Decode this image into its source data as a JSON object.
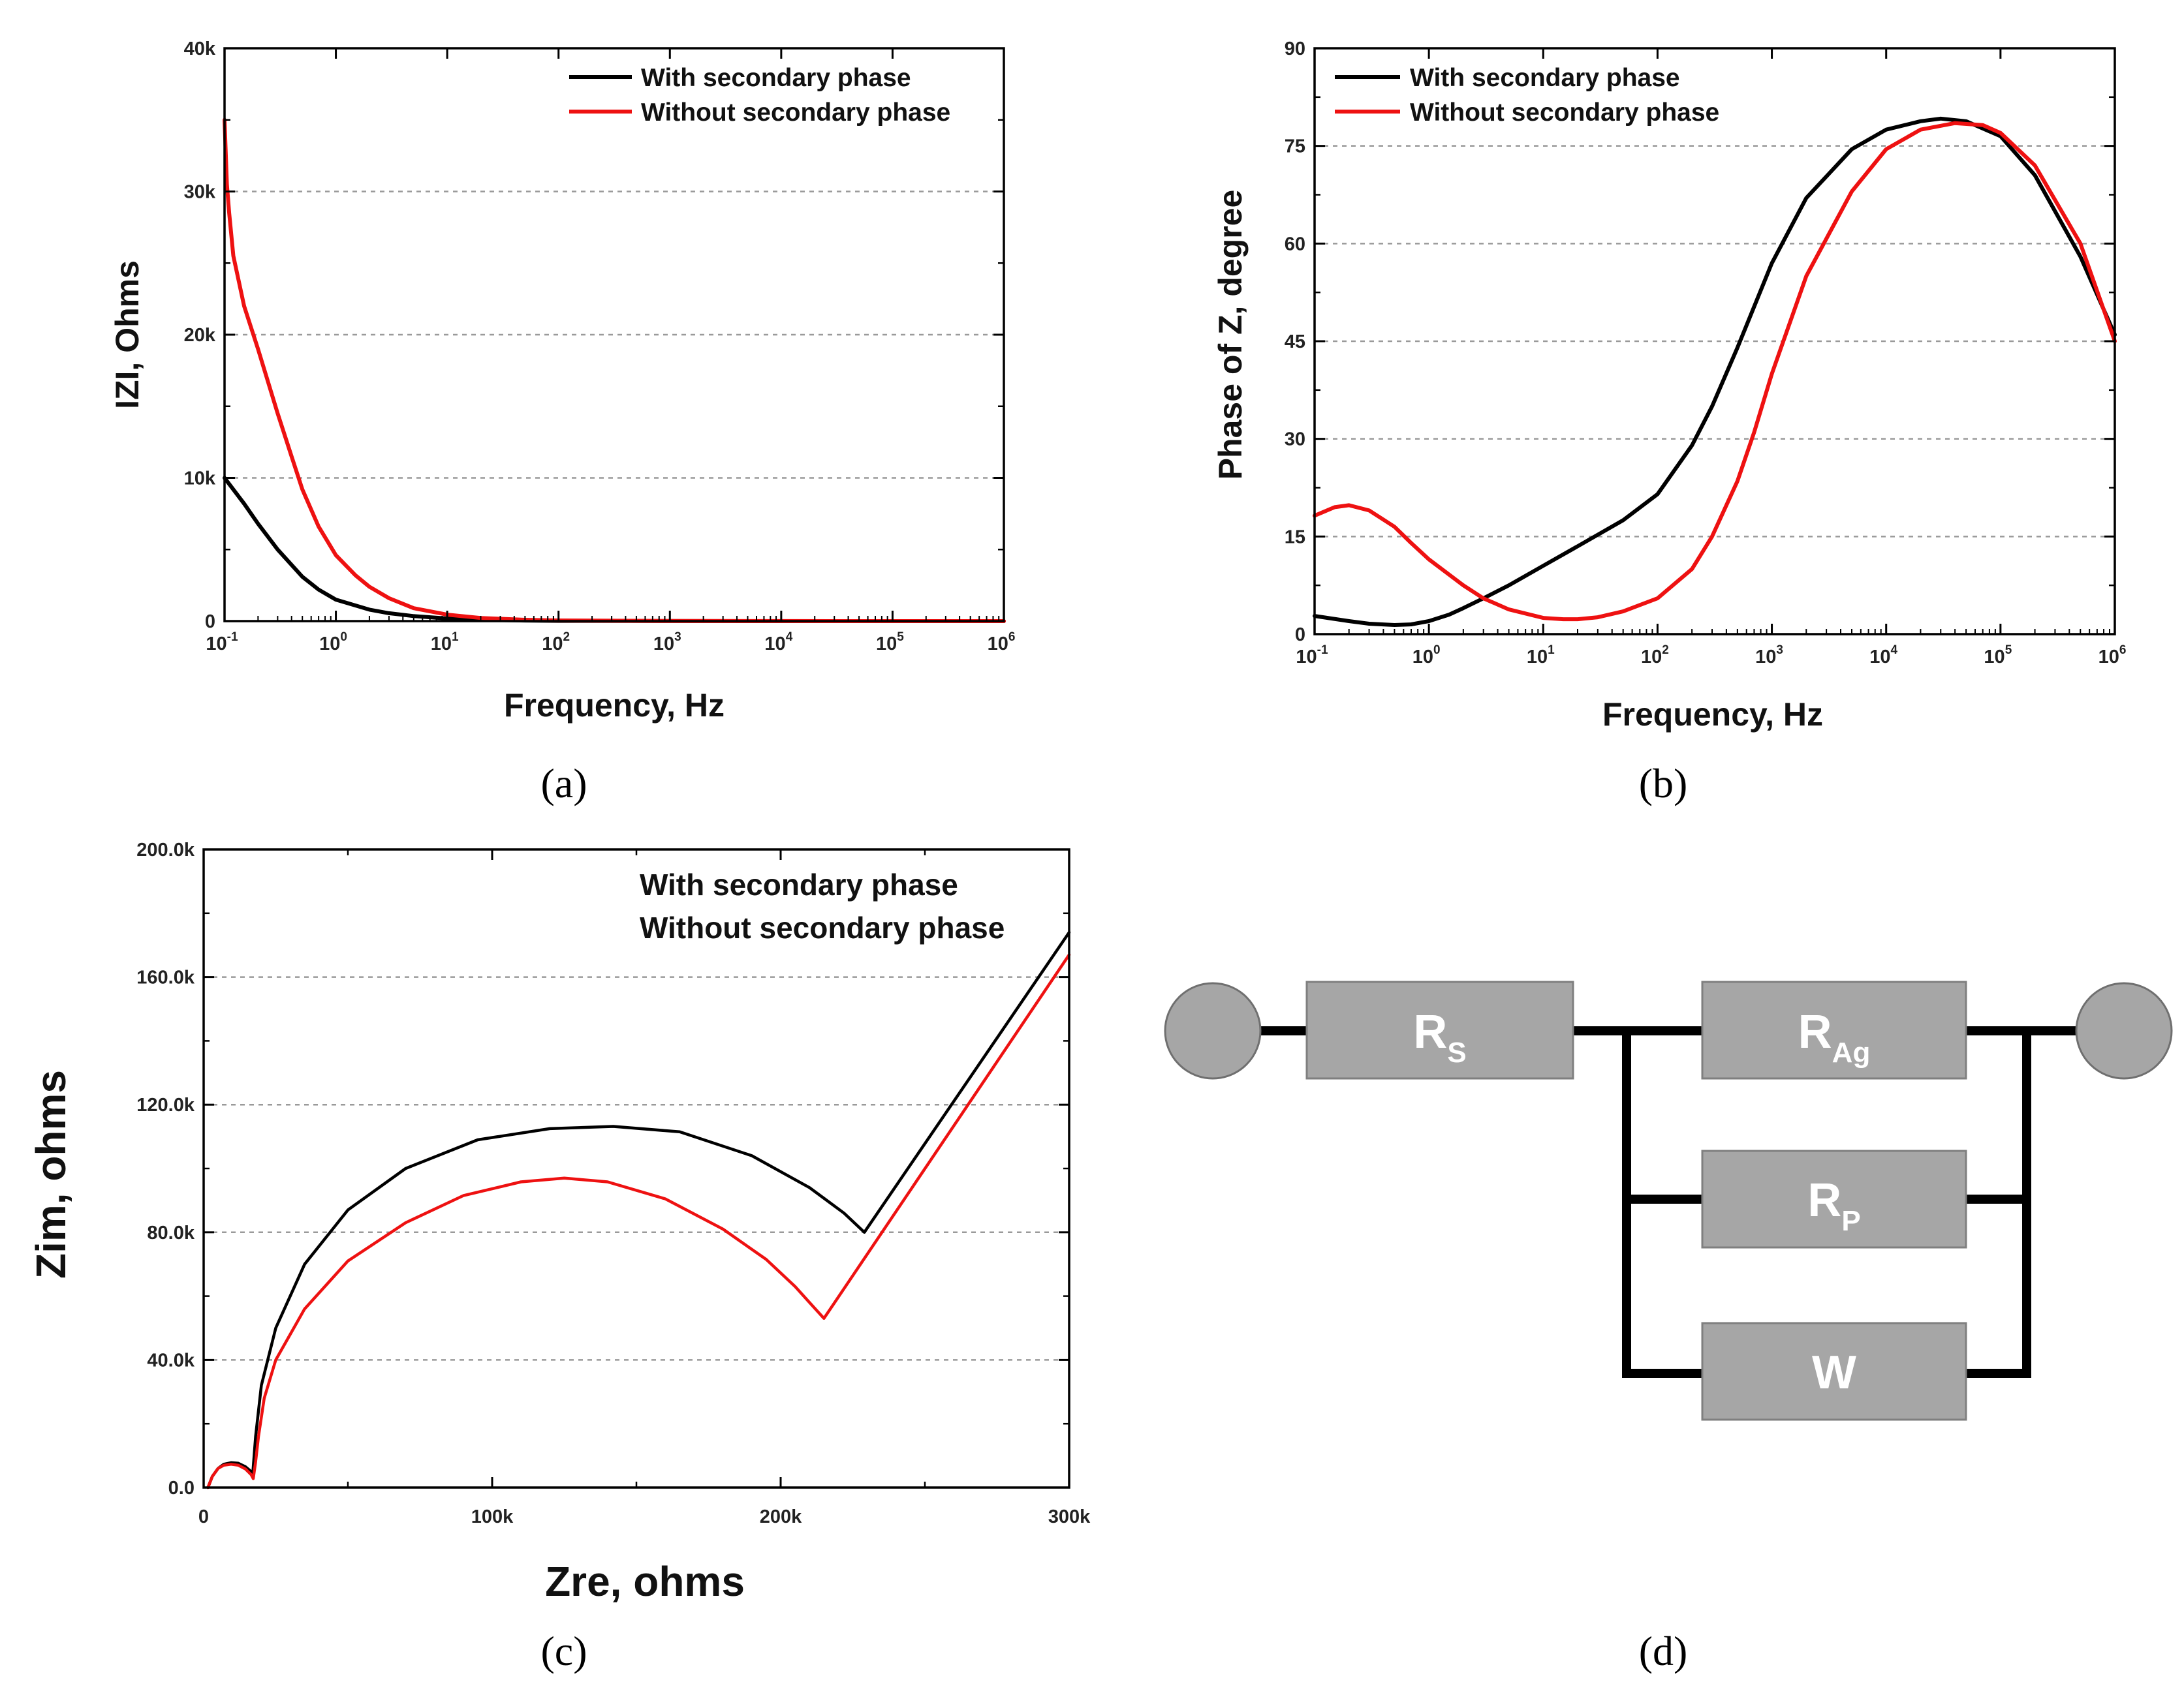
{
  "captions": [
    "(a)",
    "(b)",
    "(c)",
    "(d)"
  ],
  "colors": {
    "with": "#000000",
    "without": "#ee1111",
    "component": "#a6a6a6",
    "node": "#a6a6a6"
  },
  "chart_data": [
    {
      "id": "a",
      "type": "line",
      "xscale": "log",
      "xlim": [
        0.1,
        1000000
      ],
      "ylim": [
        0,
        40000
      ],
      "xlabel": "Frequency, Hz",
      "ylabel": "IZI, Ohms",
      "xticks": [
        "10",
        "10",
        "10",
        "10",
        "10",
        "10",
        "10",
        "10"
      ],
      "xtick_exps": [
        "-1",
        "0",
        "1",
        "2",
        "3",
        "4",
        "5",
        "6"
      ],
      "yticks": [
        0,
        10000,
        20000,
        30000,
        40000
      ],
      "ytick_labels": [
        "0",
        "10k",
        "20k",
        "30k",
        "40k"
      ],
      "grid_y": [
        10000,
        20000,
        30000
      ],
      "legend": {
        "position": "top-right",
        "entries": [
          "With secondary phase",
          "Without secondary phase"
        ]
      },
      "series": [
        {
          "name": "With secondary phase",
          "x": [
            0.1,
            0.15,
            0.2,
            0.3,
            0.5,
            0.7,
            1,
            2,
            3,
            5,
            10,
            20,
            50,
            100,
            1000,
            10000,
            100000,
            1000000
          ],
          "y": [
            10000,
            8200,
            6800,
            5000,
            3100,
            2200,
            1500,
            800,
            550,
            350,
            180,
            90,
            40,
            20,
            5,
            2,
            1,
            0
          ]
        },
        {
          "name": "Without secondary phase",
          "x": [
            0.1,
            0.105,
            0.11,
            0.12,
            0.15,
            0.2,
            0.3,
            0.4,
            0.5,
            0.7,
            1,
            1.5,
            2,
            3,
            5,
            10,
            20,
            50,
            100,
            1000,
            10000,
            100000,
            1000000
          ],
          "y": [
            35000,
            30500,
            28500,
            25500,
            22000,
            19000,
            14500,
            11500,
            9200,
            6600,
            4600,
            3200,
            2400,
            1600,
            900,
            450,
            220,
            90,
            45,
            8,
            3,
            1,
            0
          ]
        }
      ]
    },
    {
      "id": "b",
      "type": "line",
      "xscale": "log",
      "xlim": [
        0.1,
        1000000
      ],
      "ylim": [
        0,
        90
      ],
      "xlabel": "Frequency, Hz",
      "ylabel": "Phase of Z, degree",
      "xticks": [
        "10",
        "10",
        "10",
        "10",
        "10",
        "10",
        "10",
        "10"
      ],
      "xtick_exps": [
        "-1",
        "0",
        "1",
        "2",
        "3",
        "4",
        "5",
        "6"
      ],
      "yticks": [
        0,
        15,
        30,
        45,
        60,
        75,
        90
      ],
      "ytick_labels": [
        "0",
        "15",
        "30",
        "45",
        "60",
        "75",
        "90"
      ],
      "grid_y": [
        15,
        30,
        45,
        60,
        75
      ],
      "legend": {
        "position": "top-left",
        "entries": [
          "With secondary phase",
          "Without secondary phase"
        ]
      },
      "series": [
        {
          "name": "With secondary phase",
          "x": [
            0.1,
            0.2,
            0.3,
            0.5,
            0.7,
            1,
            1.5,
            2,
            3,
            5,
            10,
            20,
            50,
            100,
            200,
            300,
            500,
            1000,
            2000,
            5000,
            10000,
            20000,
            30000,
            50000,
            100000,
            200000,
            500000,
            1000000
          ],
          "y": [
            2.8,
            2.0,
            1.6,
            1.4,
            1.5,
            2.0,
            3.0,
            4.0,
            5.5,
            7.5,
            10.5,
            13.5,
            17.5,
            21.5,
            29,
            35,
            44,
            57,
            67,
            74.5,
            77.5,
            78.8,
            79.2,
            78.8,
            76.5,
            70.5,
            58,
            46
          ]
        },
        {
          "name": "Without secondary phase",
          "x": [
            0.1,
            0.15,
            0.2,
            0.3,
            0.5,
            0.7,
            1,
            2,
            3,
            5,
            10,
            15,
            20,
            30,
            50,
            100,
            200,
            300,
            500,
            700,
            1000,
            2000,
            5000,
            10000,
            20000,
            40000,
            70000,
            100000,
            200000,
            500000,
            1000000
          ],
          "y": [
            18.2,
            19.5,
            19.8,
            19.0,
            16.5,
            14.0,
            11.5,
            7.5,
            5.5,
            3.8,
            2.5,
            2.3,
            2.3,
            2.6,
            3.5,
            5.5,
            10,
            15,
            23.5,
            31,
            40,
            55,
            68,
            74.5,
            77.5,
            78.5,
            78.2,
            77,
            72,
            60,
            45
          ]
        }
      ]
    },
    {
      "id": "c",
      "type": "line",
      "xlim": [
        0,
        300000
      ],
      "ylim": [
        0,
        200000
      ],
      "xlabel": "Zre, ohms",
      "ylabel": "Zim, ohms",
      "xticks": [
        0,
        100000,
        200000,
        300000
      ],
      "xtick_labels": [
        "0",
        "100k",
        "200k",
        "300k"
      ],
      "yticks": [
        0,
        40000,
        80000,
        120000,
        160000,
        200000
      ],
      "ytick_labels": [
        "0.0",
        "40.0k",
        "80.0k",
        "120.0k",
        "160.0k",
        "200.0k"
      ],
      "grid_y": [
        40000,
        80000,
        120000,
        160000
      ],
      "legend": {
        "position": "top-right",
        "entries": [
          "With secondary phase",
          "Without secondary phase"
        ]
      },
      "series": [
        {
          "name": "With secondary phase",
          "x": [
            1500,
            3000,
            5000,
            7000,
            9500,
            12000,
            14500,
            16500,
            17000,
            18000,
            20000,
            25000,
            35000,
            50000,
            70000,
            95000,
            120000,
            142000,
            165000,
            190000,
            210000,
            222000,
            229000,
            300000
          ],
          "y": [
            0,
            3500,
            6000,
            7300,
            7800,
            7600,
            6500,
            5000,
            4000,
            16000,
            32000,
            50000,
            70000,
            87000,
            100000,
            109000,
            112500,
            113200,
            111500,
            104000,
            94000,
            86000,
            80000,
            174000
          ]
        },
        {
          "name": "Without secondary phase",
          "x": [
            1500,
            3000,
            5000,
            7000,
            9500,
            12000,
            14500,
            16500,
            17200,
            18000,
            19000,
            21000,
            25000,
            35000,
            50000,
            70000,
            90000,
            110000,
            125000,
            140000,
            160000,
            180000,
            195000,
            205000,
            210000,
            215000,
            300000
          ],
          "y": [
            0,
            3500,
            6000,
            7000,
            7300,
            7000,
            5800,
            4000,
            2800,
            8000,
            16000,
            28000,
            40000,
            56000,
            71000,
            83000,
            91500,
            95800,
            97000,
            95800,
            90500,
            81000,
            71500,
            63000,
            58000,
            53000,
            167000
          ]
        }
      ]
    }
  ],
  "circuit": {
    "components": [
      "R",
      "R",
      "R",
      "W"
    ],
    "subscripts": [
      "S",
      "Ag",
      "P",
      ""
    ]
  }
}
